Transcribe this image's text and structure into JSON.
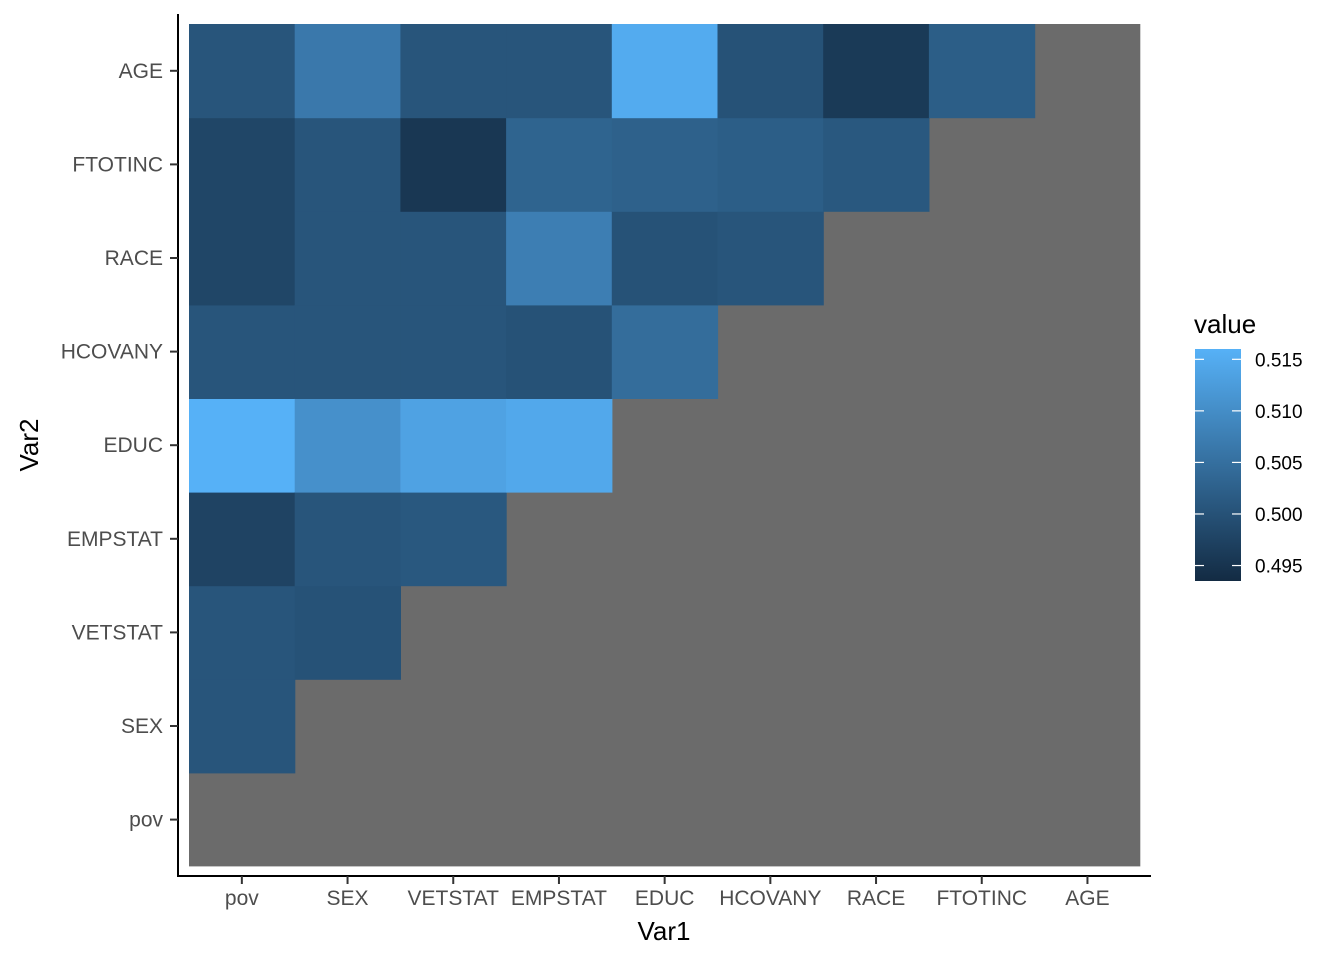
{
  "chart_data": {
    "type": "heatmap",
    "xlabel": "Var1",
    "ylabel": "Var2",
    "x_categories": [
      "pov",
      "SEX",
      "VETSTAT",
      "EMPSTAT",
      "EDUC",
      "HCOVANY",
      "RACE",
      "FTOTINC",
      "AGE"
    ],
    "y_categories": [
      "pov",
      "SEX",
      "VETSTAT",
      "EMPSTAT",
      "EDUC",
      "HCOVANY",
      "RACE",
      "FTOTINC",
      "AGE"
    ],
    "na_color": "#6b6b6b",
    "cells": [
      {
        "x": "pov",
        "y": "SEX",
        "value": 0.5005
      },
      {
        "x": "pov",
        "y": "VETSTAT",
        "value": 0.5005
      },
      {
        "x": "pov",
        "y": "EMPSTAT",
        "value": 0.4975
      },
      {
        "x": "pov",
        "y": "EDUC",
        "value": 0.516
      },
      {
        "x": "pov",
        "y": "HCOVANY",
        "value": 0.5005
      },
      {
        "x": "pov",
        "y": "RACE",
        "value": 0.498
      },
      {
        "x": "pov",
        "y": "FTOTINC",
        "value": 0.498
      },
      {
        "x": "pov",
        "y": "AGE",
        "value": 0.5005
      },
      {
        "x": "SEX",
        "y": "VETSTAT",
        "value": 0.5
      },
      {
        "x": "SEX",
        "y": "EMPSTAT",
        "value": 0.5005
      },
      {
        "x": "SEX",
        "y": "EDUC",
        "value": 0.5105
      },
      {
        "x": "SEX",
        "y": "HCOVANY",
        "value": 0.5005
      },
      {
        "x": "SEX",
        "y": "RACE",
        "value": 0.5005
      },
      {
        "x": "SEX",
        "y": "FTOTINC",
        "value": 0.5005
      },
      {
        "x": "SEX",
        "y": "AGE",
        "value": 0.5065
      },
      {
        "x": "VETSTAT",
        "y": "EMPSTAT",
        "value": 0.501
      },
      {
        "x": "VETSTAT",
        "y": "EDUC",
        "value": 0.5135
      },
      {
        "x": "VETSTAT",
        "y": "HCOVANY",
        "value": 0.5005
      },
      {
        "x": "VETSTAT",
        "y": "RACE",
        "value": 0.5005
      },
      {
        "x": "VETSTAT",
        "y": "FTOTINC",
        "value": 0.4955
      },
      {
        "x": "VETSTAT",
        "y": "AGE",
        "value": 0.5005
      },
      {
        "x": "EMPSTAT",
        "y": "EDUC",
        "value": 0.5145
      },
      {
        "x": "EMPSTAT",
        "y": "HCOVANY",
        "value": 0.5
      },
      {
        "x": "EMPSTAT",
        "y": "RACE",
        "value": 0.5075
      },
      {
        "x": "EMPSTAT",
        "y": "FTOTINC",
        "value": 0.503
      },
      {
        "x": "EMPSTAT",
        "y": "AGE",
        "value": 0.5005
      },
      {
        "x": "EDUC",
        "y": "HCOVANY",
        "value": 0.5045
      },
      {
        "x": "EDUC",
        "y": "RACE",
        "value": 0.5
      },
      {
        "x": "EDUC",
        "y": "FTOTINC",
        "value": 0.5025
      },
      {
        "x": "EDUC",
        "y": "AGE",
        "value": 0.515
      },
      {
        "x": "HCOVANY",
        "y": "RACE",
        "value": 0.5005
      },
      {
        "x": "HCOVANY",
        "y": "FTOTINC",
        "value": 0.502
      },
      {
        "x": "HCOVANY",
        "y": "AGE",
        "value": 0.5
      },
      {
        "x": "RACE",
        "y": "FTOTINC",
        "value": 0.501
      },
      {
        "x": "RACE",
        "y": "AGE",
        "value": 0.496
      },
      {
        "x": "FTOTINC",
        "y": "AGE",
        "value": 0.502
      }
    ],
    "legend": {
      "title": "value",
      "ticks": [
        "0.515",
        "0.510",
        "0.505",
        "0.500",
        "0.495"
      ],
      "range": [
        0.4935,
        0.516
      ],
      "low_color": "#132b43",
      "high_color": "#56b1f7",
      "placement": "right"
    },
    "grid": false
  }
}
